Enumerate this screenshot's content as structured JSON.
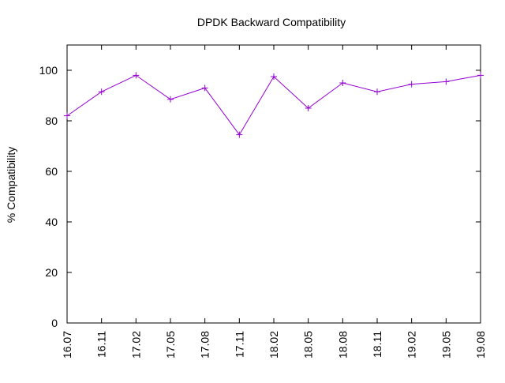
{
  "chart_data": {
    "type": "line",
    "title": "DPDK Backward Compatibility",
    "xlabel": "",
    "ylabel": "% Compatibility",
    "categories": [
      "16.07",
      "16.11",
      "17.02",
      "17.05",
      "17.08",
      "17.11",
      "18.02",
      "18.05",
      "18.08",
      "18.11",
      "19.02",
      "19.05",
      "19.08"
    ],
    "series": [
      {
        "values": [
          82,
          91.5,
          98,
          88.5,
          93,
          74.5,
          97.5,
          85,
          95,
          91.5,
          94.5,
          95.5,
          98
        ],
        "color": "#9400d3",
        "marker": "plus"
      }
    ],
    "ylim": [
      0,
      110
    ],
    "yticks": [
      0,
      20,
      40,
      60,
      80,
      100
    ],
    "grid": false,
    "legend": "none"
  }
}
